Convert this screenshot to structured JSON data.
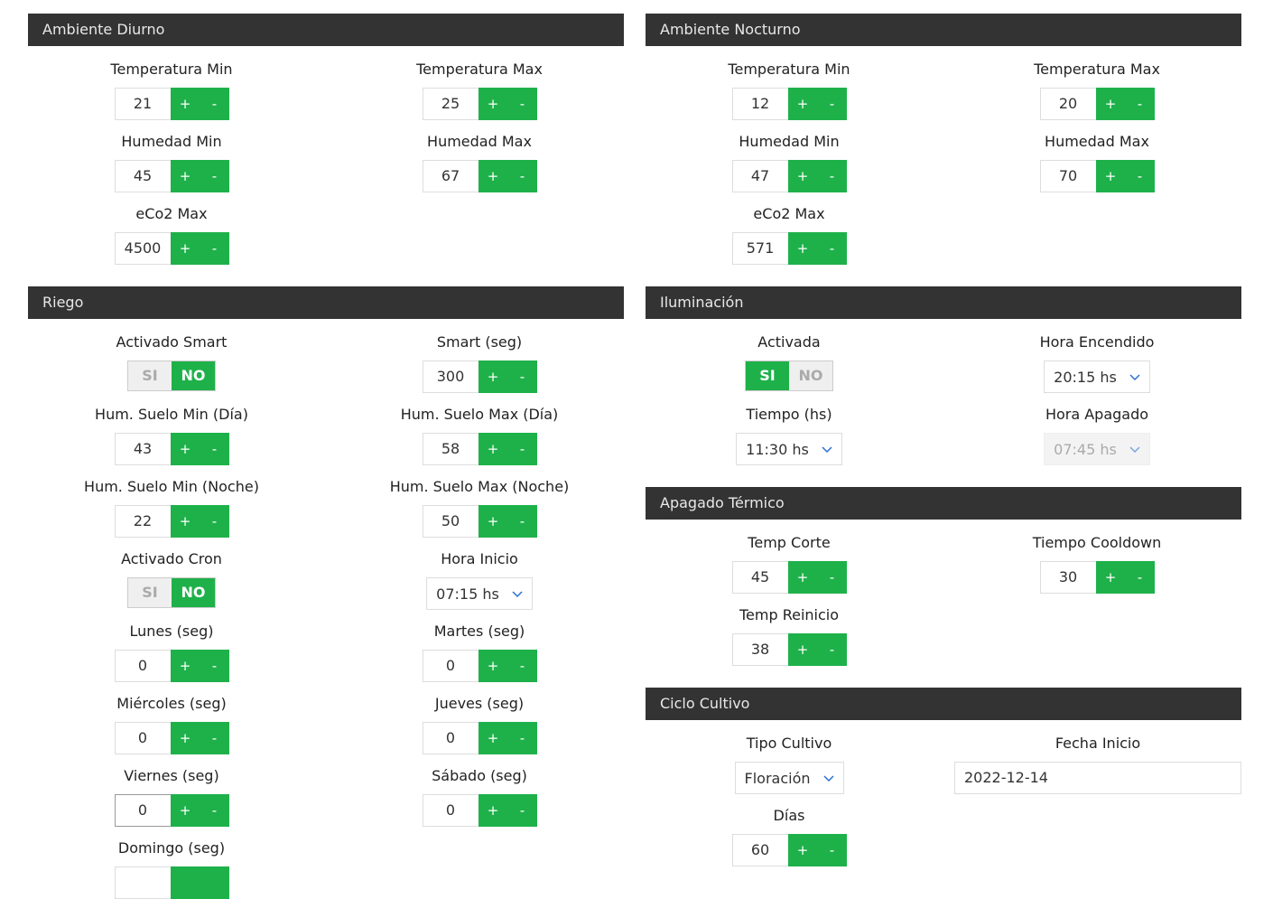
{
  "diurno": {
    "title": "Ambiente Diurno",
    "temp_min_label": "Temperatura Min",
    "temp_min": "21",
    "temp_max_label": "Temperatura Max",
    "temp_max": "25",
    "hum_min_label": "Humedad Min",
    "hum_min": "45",
    "hum_max_label": "Humedad Max",
    "hum_max": "67",
    "eco2_max_label": "eCo2 Max",
    "eco2_max": "4500"
  },
  "nocturno": {
    "title": "Ambiente Nocturno",
    "temp_min_label": "Temperatura Min",
    "temp_min": "12",
    "temp_max_label": "Temperatura Max",
    "temp_max": "20",
    "hum_min_label": "Humedad Min",
    "hum_min": "47",
    "hum_max_label": "Humedad Max",
    "hum_max": "70",
    "eco2_max_label": "eCo2 Max",
    "eco2_max": "571"
  },
  "riego": {
    "title": "Riego",
    "smart_label": "Activado Smart",
    "smart_active": "NO",
    "smart_seg_label": "Smart (seg)",
    "smart_seg": "300",
    "hum_suelo_min_dia_label": "Hum. Suelo Min (Día)",
    "hum_suelo_min_dia": "43",
    "hum_suelo_max_dia_label": "Hum. Suelo Max (Día)",
    "hum_suelo_max_dia": "58",
    "hum_suelo_min_noche_label": "Hum. Suelo Min (Noche)",
    "hum_suelo_min_noche": "22",
    "hum_suelo_max_noche_label": "Hum. Suelo Max (Noche)",
    "hum_suelo_max_noche": "50",
    "cron_label": "Activado Cron",
    "cron_active": "NO",
    "hora_inicio_label": "Hora Inicio",
    "hora_inicio": "07:15 hs",
    "lunes_label": "Lunes (seg)",
    "lunes": "0",
    "martes_label": "Martes (seg)",
    "martes": "0",
    "miercoles_label": "Miércoles (seg)",
    "miercoles": "0",
    "jueves_label": "Jueves (seg)",
    "jueves": "0",
    "viernes_label": "Viernes (seg)",
    "viernes": "0",
    "sabado_label": "Sábado (seg)",
    "sabado": "0",
    "domingo_label": "Domingo (seg)"
  },
  "iluminacion": {
    "title": "Iluminación",
    "activada_label": "Activada",
    "activada": "SI",
    "hora_encendido_label": "Hora Encendido",
    "hora_encendido": "20:15 hs",
    "tiempo_label": "Tiempo (hs)",
    "tiempo": "11:30 hs",
    "hora_apagado_label": "Hora Apagado",
    "hora_apagado": "07:45 hs"
  },
  "apagado": {
    "title": "Apagado Térmico",
    "temp_corte_label": "Temp Corte",
    "temp_corte": "45",
    "cooldown_label": "Tiempo Cooldown",
    "cooldown": "30",
    "temp_reinicio_label": "Temp Reinicio",
    "temp_reinicio": "38"
  },
  "ciclo": {
    "title": "Ciclo Cultivo",
    "tipo_label": "Tipo Cultivo",
    "tipo": "Floración",
    "fecha_label": "Fecha Inicio",
    "fecha": "2022-12-14",
    "dias_label": "Días",
    "dias": "60"
  },
  "common": {
    "plus": "+",
    "minus": "-",
    "si": "SI",
    "no": "NO"
  },
  "colors": {
    "header": "#333333",
    "accent": "#1eb14a"
  }
}
